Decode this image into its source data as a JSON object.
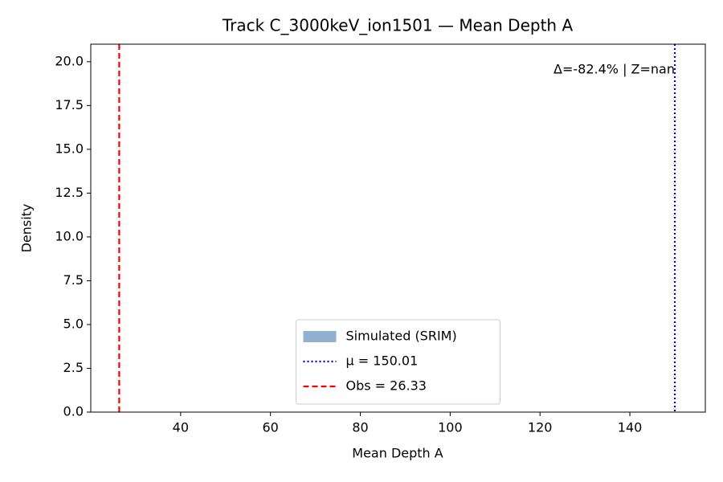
{
  "chart_data": {
    "type": "histogram",
    "title": "Track C_3000keV_ion1501 — Mean Depth A",
    "xlabel": "Mean Depth A",
    "ylabel": "Density",
    "xlim": [
      20,
      156.8
    ],
    "ylim": [
      0,
      21
    ],
    "xticks": [
      40,
      60,
      80,
      100,
      120,
      140
    ],
    "yticks": [
      {
        "value": 0,
        "label": "0.0"
      },
      2.5,
      {
        "value": 5,
        "label": "5.0"
      },
      7.5,
      {
        "value": 10,
        "label": "10.0"
      },
      12.5,
      {
        "value": 15,
        "label": "15.0"
      },
      17.5,
      {
        "value": 20,
        "label": "20.0"
      }
    ],
    "series": [
      {
        "name": "Simulated (SRIM)",
        "color": "#92b0d0"
      }
    ],
    "vlines": [
      {
        "name": "μ = 150.01",
        "value": 150.01,
        "color": "#0000cc",
        "style": "dotted"
      },
      {
        "name": "Obs = 26.33",
        "value": 26.33,
        "color": "#ff0000",
        "style": "dashed"
      }
    ],
    "annotation": "Δ=-82.4% | Z=nan",
    "legend": "lower center"
  }
}
